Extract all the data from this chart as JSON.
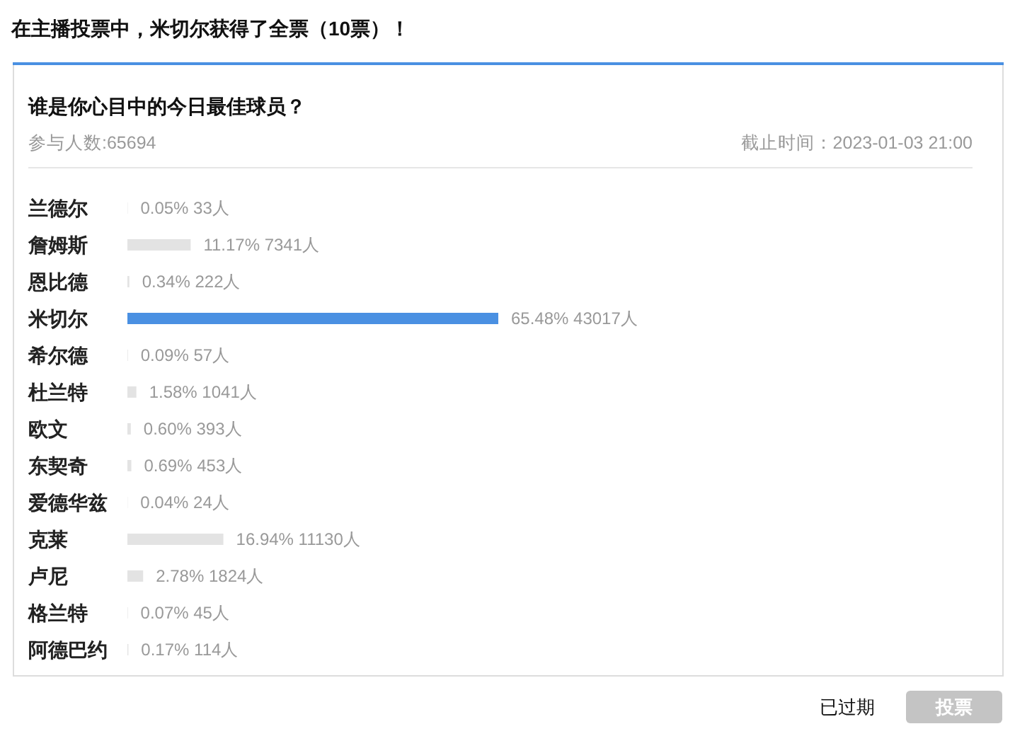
{
  "chart_data": {
    "type": "bar",
    "orientation": "horizontal",
    "title": "在主播投票中，米切尔获得了全票（10票）！",
    "subtitle": "谁是你心目中的今日最佳球员？",
    "annotations": [
      "参与人数:65694",
      "截止时间：2023-01-03 21:00",
      "已过期",
      "投票"
    ],
    "categories": [
      "兰德尔",
      "詹姆斯",
      "恩比德",
      "米切尔",
      "希尔德",
      "杜兰特",
      "欧文",
      "东契奇",
      "爱德华兹",
      "克莱",
      "卢尼",
      "格兰特",
      "阿德巴约"
    ],
    "values": [
      0.05,
      11.17,
      0.34,
      65.48,
      0.09,
      1.58,
      0.6,
      0.69,
      0.04,
      16.94,
      2.78,
      0.07,
      0.17
    ],
    "value_labels": [
      "0.05% 33人",
      "11.17% 7341人",
      "0.34% 222人",
      "65.48% 43017人",
      "0.09% 57人",
      "1.58% 1041人",
      "0.60% 393人",
      "0.69% 453人",
      "0.04% 24人",
      "16.94% 11130人",
      "2.78% 1824人",
      "0.07% 45人",
      "0.17% 114人"
    ],
    "colors": [
      "#e3e3e3",
      "#e3e3e3",
      "#e3e3e3",
      "#4a90e2",
      "#e3e3e3",
      "#e3e3e3",
      "#e3e3e3",
      "#e3e3e3",
      "#e3e3e3",
      "#e3e3e3",
      "#e3e3e3",
      "#e3e3e3",
      "#e3e3e3"
    ],
    "tick_labels": "y"
  }
}
